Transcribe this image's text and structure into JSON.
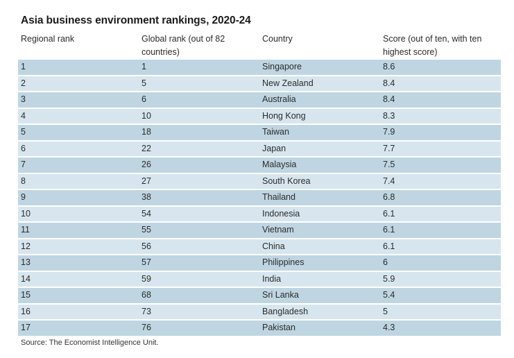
{
  "title": "Asia business environment rankings, 2020-24",
  "columns": [
    "Regional rank",
    "Global rank (out of 82 countries)",
    "Country",
    "Score (out of ten, with ten highest score)"
  ],
  "rows": [
    {
      "regional": "1",
      "global": "1",
      "country": "Singapore",
      "score": "8.6"
    },
    {
      "regional": "2",
      "global": "5",
      "country": "New Zealand",
      "score": "8.4"
    },
    {
      "regional": "3",
      "global": "6",
      "country": "Australia",
      "score": "8.4"
    },
    {
      "regional": "4",
      "global": "10",
      "country": "Hong Kong",
      "score": "8.3"
    },
    {
      "regional": "5",
      "global": "18",
      "country": "Taiwan",
      "score": "7.9"
    },
    {
      "regional": "6",
      "global": "22",
      "country": "Japan",
      "score": "7.7"
    },
    {
      "regional": "7",
      "global": "26",
      "country": "Malaysia",
      "score": "7.5"
    },
    {
      "regional": "8",
      "global": "27",
      "country": "South Korea",
      "score": "7.4"
    },
    {
      "regional": "9",
      "global": "38",
      "country": "Thailand",
      "score": "6.8"
    },
    {
      "regional": "10",
      "global": "54",
      "country": "Indonesia",
      "score": "6.1"
    },
    {
      "regional": "11",
      "global": "55",
      "country": "Vietnam",
      "score": "6.1"
    },
    {
      "regional": "12",
      "global": "56",
      "country": "China",
      "score": "6.1"
    },
    {
      "regional": "13",
      "global": "57",
      "country": "Philippines",
      "score": "6"
    },
    {
      "regional": "14",
      "global": "59",
      "country": "India",
      "score": "5.9"
    },
    {
      "regional": "15",
      "global": "68",
      "country": "Sri Lanka",
      "score": "5.4"
    },
    {
      "regional": "16",
      "global": "73",
      "country": "Bangladesh",
      "score": "5"
    },
    {
      "regional": "17",
      "global": "76",
      "country": "Pakistan",
      "score": "4.3"
    }
  ],
  "source": "Source: The Economist Intelligence Unit.",
  "colors": {
    "row_dark": "#bfd6e2",
    "row_light": "#d7e6ee"
  }
}
